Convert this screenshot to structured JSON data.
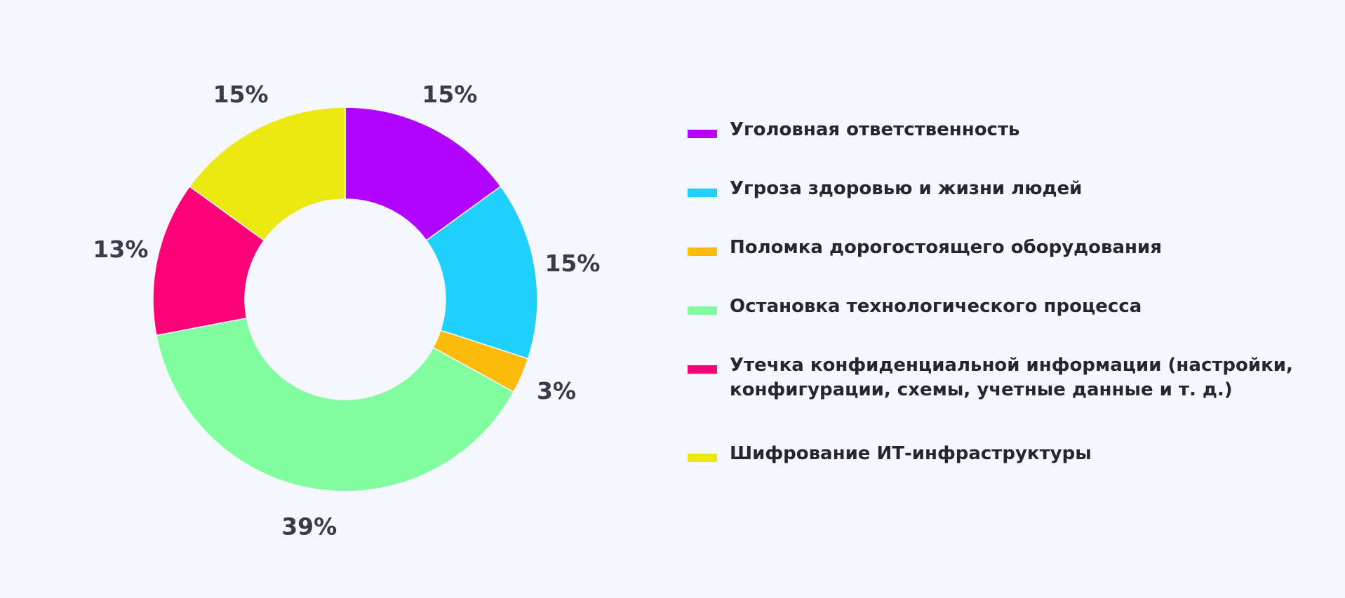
{
  "chart_data": {
    "type": "pie",
    "donut": true,
    "start_angle_deg": 0,
    "direction": "clockwise",
    "legend_position": "right",
    "slices": [
      {
        "label": "Уголовная ответственность",
        "value": 15,
        "display": "15%",
        "color": "#b105fd"
      },
      {
        "label": "Угроза здоровью и жизни людей",
        "value": 15,
        "display": "15%",
        "color": "#1fcffc"
      },
      {
        "label": "Поломка дорогостоящего оборудования",
        "value": 3,
        "display": "3%",
        "color": "#fcba0a"
      },
      {
        "label": "Остановка технологического процесса",
        "value": 39,
        "display": "39%",
        "color": "#80fd9f"
      },
      {
        "label": "Утечка конфиденциальной информации (настройки, конфигурации, схемы, учетные данные и т. д.)",
        "value": 13,
        "display": "13%",
        "color": "#fd0177"
      },
      {
        "label": "Шифрование ИТ-инфраструктуры",
        "value": 15,
        "display": "15%",
        "color": "#ebe710"
      }
    ]
  }
}
